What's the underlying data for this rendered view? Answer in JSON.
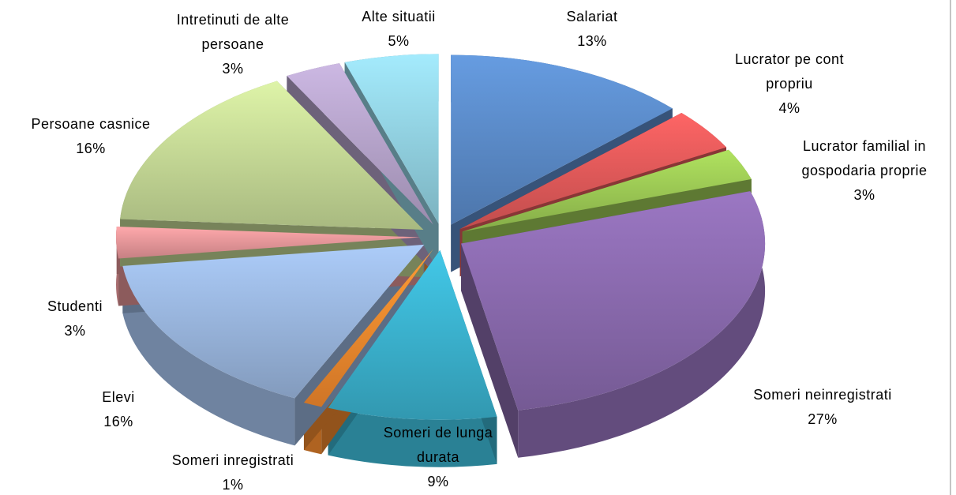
{
  "chart_data": {
    "type": "pie",
    "categories": [
      "Salariat",
      "Lucrator pe cont propriu",
      "Lucrator familial in gospodaria proprie",
      "Someri neinregistrati",
      "Someri de lunga durata",
      "Someri inregistrati",
      "Elevi",
      "Studenti",
      "Persoane casnice",
      "Intretinuti de alte persoane",
      "Alte situatii"
    ],
    "values": [
      13,
      4,
      3,
      27,
      9,
      1,
      16,
      3,
      16,
      3,
      5
    ],
    "value_labels": [
      "13%",
      "4%",
      "3%",
      "27%",
      "9%",
      "1%",
      "16%",
      "3%",
      "16%",
      "3%",
      "5%"
    ],
    "colors": [
      "#5b8bc9",
      "#e35a5a",
      "#9dca55",
      "#8a6aae",
      "#3bb3cf",
      "#f38a2e",
      "#9ab6de",
      "#e9979a",
      "#c6da96",
      "#b6a4cb",
      "#92d2e2"
    ]
  }
}
